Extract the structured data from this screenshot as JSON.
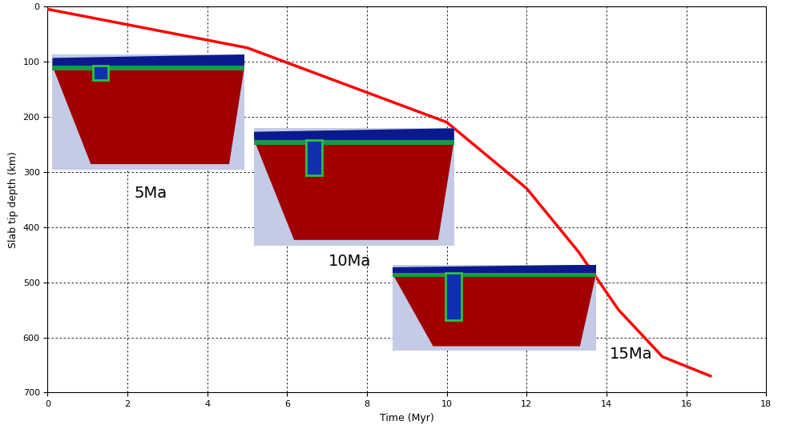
{
  "chart_data": {
    "type": "line",
    "x_label": "Time (Myr)",
    "y_label": "Slab tip depth (km)",
    "series": [
      {
        "name": "Slab tip depth",
        "color": "#ff0000",
        "line_style": "solid",
        "x": [
          0,
          5,
          10,
          12,
          13.3,
          14.3,
          15.4,
          16.6
        ],
        "values": [
          5,
          75,
          210,
          330,
          445,
          550,
          635,
          670
        ]
      }
    ],
    "xlim": [
      0,
      18
    ],
    "xticks": [
      0,
      2,
      4,
      6,
      8,
      10,
      12,
      14,
      16,
      18
    ],
    "ylim": [
      700,
      0
    ],
    "yticks": [
      0,
      100,
      200,
      300,
      400,
      500,
      600,
      700
    ],
    "grid": true,
    "annotations": [
      "5Ma",
      "10Ma",
      "15Ma"
    ]
  }
}
